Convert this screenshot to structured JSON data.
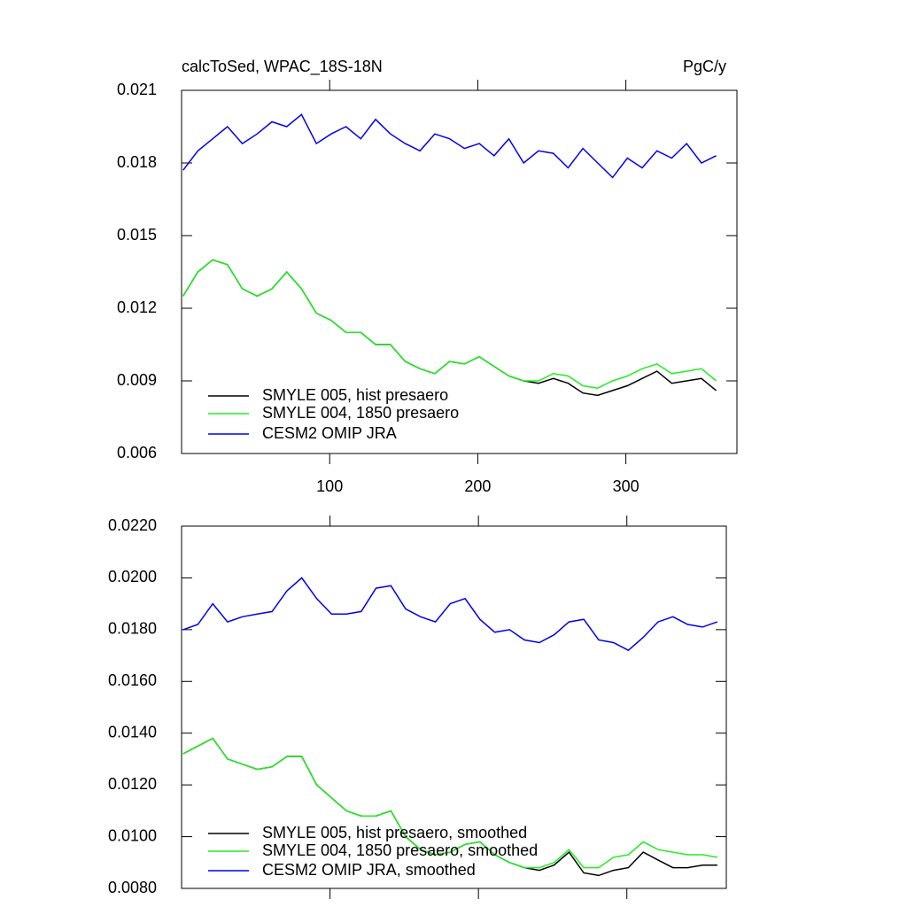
{
  "chart_data": [
    {
      "type": "line",
      "title": "calcToSed, WPAC_18S-18N",
      "units_label": "PgC/y",
      "x": [
        1,
        11,
        21,
        31,
        41,
        51,
        61,
        71,
        81,
        91,
        101,
        111,
        121,
        131,
        141,
        151,
        161,
        171,
        181,
        191,
        201,
        211,
        221,
        231,
        241,
        251,
        261,
        271,
        281,
        291,
        301,
        311,
        321,
        331,
        341,
        351,
        361
      ],
      "xlim": [
        0,
        375
      ],
      "xticks": [
        100,
        200,
        300
      ],
      "show_xtick_labels": true,
      "ylim": [
        0.006,
        0.021
      ],
      "yticks": [
        0.006,
        0.009,
        0.012,
        0.015,
        0.018,
        0.021
      ],
      "legend": "lower left",
      "series": [
        {
          "name": "SMYLE 005, hist presaero",
          "color": "#000000",
          "values": [
            0.0125,
            0.0135,
            0.014,
            0.0138,
            0.0128,
            0.0125,
            0.0128,
            0.0135,
            0.0128,
            0.0118,
            0.0115,
            0.011,
            0.011,
            0.0105,
            0.0105,
            0.0098,
            0.0095,
            0.0093,
            0.0098,
            0.0097,
            0.01,
            0.0096,
            0.0092,
            0.009,
            0.0089,
            0.0091,
            0.0089,
            0.0085,
            0.0084,
            0.0086,
            0.0088,
            0.0091,
            0.0094,
            0.0089,
            0.009,
            0.0091,
            0.0086
          ]
        },
        {
          "name": "SMYLE 004, 1850 presaero",
          "color": "#22ee22",
          "values": [
            0.0125,
            0.0135,
            0.014,
            0.0138,
            0.0128,
            0.0125,
            0.0128,
            0.0135,
            0.0128,
            0.0118,
            0.0115,
            0.011,
            0.011,
            0.0105,
            0.0105,
            0.0098,
            0.0095,
            0.0093,
            0.0098,
            0.0097,
            0.01,
            0.0096,
            0.0092,
            0.009,
            0.009,
            0.0093,
            0.0092,
            0.0088,
            0.0087,
            0.009,
            0.0092,
            0.0095,
            0.0097,
            0.0093,
            0.0094,
            0.0095,
            0.009
          ]
        },
        {
          "name": "CESM2 OMIP JRA",
          "color": "#0000ee",
          "values": [
            0.0177,
            0.0185,
            0.019,
            0.0195,
            0.0188,
            0.0192,
            0.0197,
            0.0195,
            0.02,
            0.0188,
            0.0192,
            0.0195,
            0.019,
            0.0198,
            0.0192,
            0.0188,
            0.0185,
            0.0192,
            0.019,
            0.0186,
            0.0188,
            0.0183,
            0.019,
            0.018,
            0.0185,
            0.0184,
            0.0178,
            0.0186,
            0.018,
            0.0174,
            0.0182,
            0.0178,
            0.0185,
            0.0182,
            0.0188,
            0.018,
            0.0183
          ]
        }
      ]
    },
    {
      "type": "line",
      "x": [
        1,
        11,
        21,
        31,
        41,
        51,
        61,
        71,
        81,
        91,
        101,
        111,
        121,
        131,
        141,
        151,
        161,
        171,
        181,
        191,
        201,
        211,
        221,
        231,
        241,
        251,
        261,
        271,
        281,
        291,
        301,
        311,
        321,
        331,
        341,
        351,
        361
      ],
      "xlim": [
        0,
        367
      ],
      "xticks": [
        100,
        200,
        300
      ],
      "show_xtick_labels": false,
      "ylim": [
        0.008,
        0.022
      ],
      "yticks": [
        {
          "value": 0.008,
          "label": "0.0080"
        },
        {
          "value": 0.01,
          "label": "0.0100"
        },
        {
          "value": 0.012,
          "label": "0.0120"
        },
        {
          "value": 0.014,
          "label": "0.0140"
        },
        {
          "value": 0.016,
          "label": "0.0160"
        },
        {
          "value": 0.018,
          "label": "0.0180"
        },
        {
          "value": 0.02,
          "label": "0.0200"
        },
        {
          "value": 0.022,
          "label": "0.0220"
        }
      ],
      "legend": "lower left",
      "series": [
        {
          "name": "SMYLE 005, hist presaero, smoothed",
          "color": "#000000",
          "values": [
            0.0132,
            0.0135,
            0.0138,
            0.013,
            0.0128,
            0.0126,
            0.0127,
            0.0131,
            0.0131,
            0.012,
            0.0115,
            0.011,
            0.0108,
            0.0108,
            0.011,
            0.01,
            0.0095,
            0.0093,
            0.0094,
            0.0097,
            0.0098,
            0.0093,
            0.009,
            0.0088,
            0.0087,
            0.0089,
            0.0094,
            0.0086,
            0.0085,
            0.0087,
            0.0088,
            0.0094,
            0.0091,
            0.0088,
            0.0088,
            0.0089,
            0.0089
          ]
        },
        {
          "name": "SMYLE 004, 1850 presaero, smoothed",
          "color": "#22ee22",
          "values": [
            0.0132,
            0.0135,
            0.0138,
            0.013,
            0.0128,
            0.0126,
            0.0127,
            0.0131,
            0.0131,
            0.012,
            0.0115,
            0.011,
            0.0108,
            0.0108,
            0.011,
            0.01,
            0.0095,
            0.0093,
            0.0094,
            0.0097,
            0.0098,
            0.0093,
            0.009,
            0.0088,
            0.0088,
            0.009,
            0.0095,
            0.0088,
            0.0088,
            0.0092,
            0.0093,
            0.0098,
            0.0095,
            0.0094,
            0.0093,
            0.0093,
            0.0092
          ]
        },
        {
          "name": "CESM2 OMIP JRA, smoothed",
          "color": "#0000ee",
          "values": [
            0.018,
            0.0182,
            0.019,
            0.0183,
            0.0185,
            0.0186,
            0.0187,
            0.0195,
            0.02,
            0.0192,
            0.0186,
            0.0186,
            0.0187,
            0.0196,
            0.0197,
            0.0188,
            0.0185,
            0.0183,
            0.019,
            0.0192,
            0.0184,
            0.0179,
            0.018,
            0.0176,
            0.0175,
            0.0178,
            0.0183,
            0.0184,
            0.0176,
            0.0175,
            0.0172,
            0.0177,
            0.0183,
            0.0185,
            0.0182,
            0.0181,
            0.0183
          ]
        }
      ]
    }
  ]
}
